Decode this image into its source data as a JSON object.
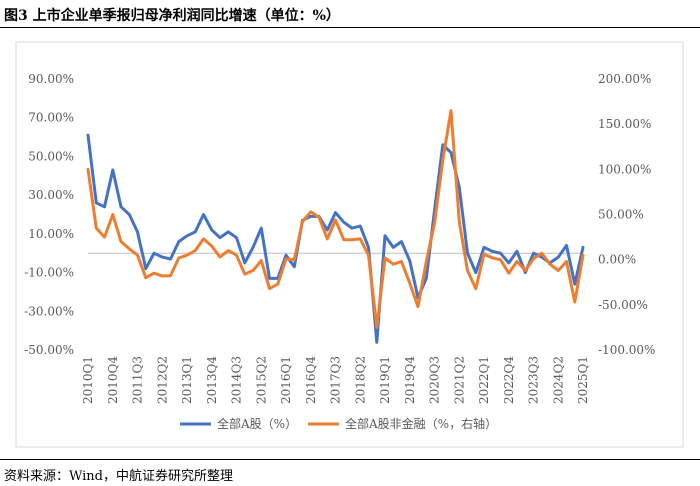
{
  "figure": {
    "title": "图3  上市企业单季报归母净利润同比增速（单位：%）",
    "source": "资料来源：Wind，中航证券研究所整理"
  },
  "chart_data": {
    "type": "line",
    "left_axis": {
      "min": -50,
      "max": 90,
      "step": 20,
      "unit": "%",
      "tick_labels": [
        "90.00%",
        "70.00%",
        "50.00%",
        "30.00%",
        "10.00%",
        "-10.00%",
        "-30.00%",
        "-50.00%"
      ]
    },
    "right_axis": {
      "min": -100,
      "max": 200,
      "step": 50,
      "unit": "%",
      "tick_labels": [
        "200.00%",
        "150.00%",
        "100.00%",
        "50.00%",
        "0.00%",
        "-50.00%",
        "-100.00%"
      ]
    },
    "x_tick_labels": [
      "2010Q1",
      "2010Q4",
      "2011Q3",
      "2012Q2",
      "2013Q1",
      "2013Q4",
      "2014Q3",
      "2015Q2",
      "2016Q1",
      "2016Q4",
      "2017Q3",
      "2018Q2",
      "2019Q1",
      "2019Q4",
      "2020Q3",
      "2021Q2",
      "2022Q1",
      "2022Q4",
      "2023Q3",
      "2024Q2",
      "2025Q1"
    ],
    "quarters_count": 61,
    "series": [
      {
        "name": "全部A股（%）",
        "axis": "left",
        "color": "#4472C4",
        "values": [
          61,
          26,
          24,
          43,
          24,
          20,
          11,
          -8,
          0,
          -2,
          -3,
          6,
          9,
          11,
          20,
          12,
          8,
          11,
          8,
          -5,
          3,
          13,
          -13,
          -13,
          -1,
          -7,
          17,
          19,
          19,
          12,
          21,
          16,
          13,
          14,
          3,
          -46,
          9,
          3,
          6,
          -4,
          -23,
          -13,
          22,
          56,
          52,
          34,
          0,
          -10,
          3,
          1,
          0,
          -5,
          1,
          -10,
          0,
          -2,
          -5,
          -2,
          4,
          -16,
          3
        ]
      },
      {
        "name": "全部A股非金融（%，右轴）",
        "axis": "right",
        "color": "#ED7D31",
        "values": [
          100,
          35,
          25,
          50,
          20,
          12,
          5,
          -20,
          -15,
          -18,
          -18,
          2,
          5,
          10,
          23,
          15,
          3,
          10,
          5,
          -16,
          -12,
          -1,
          -32,
          -27,
          1,
          0,
          42,
          53,
          47,
          23,
          44,
          22,
          22,
          23,
          5,
          -75,
          2,
          -5,
          -2,
          -26,
          -52,
          -2,
          40,
          110,
          165,
          42,
          -12,
          -32,
          6,
          2,
          0,
          -15,
          -2,
          -12,
          1,
          7,
          -5,
          -12,
          -2,
          -47,
          5
        ]
      }
    ],
    "legend_position": "bottom",
    "grid": false
  }
}
